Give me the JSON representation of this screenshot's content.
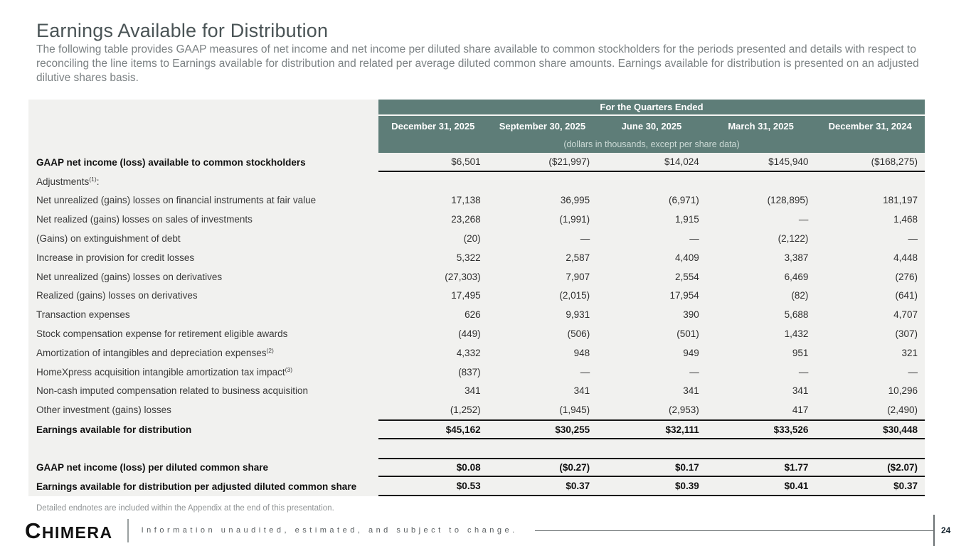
{
  "slide": {
    "title": "Earnings Available for Distribution",
    "subtitle": "The following table provides GAAP measures of net income and net income per diluted share available to common stockholders for the periods presented and details with respect to reconciling the line items to Earnings available for distribution and related per average diluted common share amounts.  Earnings available for distribution is presented on an adjusted dilutive shares basis.",
    "footnote": "Detailed endnotes are included within the Appendix at the end of this presentation.",
    "page_number": "24"
  },
  "footer": {
    "logo_text": "CHIMERA",
    "disclaimer": "Information unaudited, estimated, and subject to change."
  },
  "colors": {
    "header_teal": "#5e7d78",
    "table_background": "#f1f1ef",
    "rule_dark": "#161616"
  },
  "table": {
    "header": {
      "title": "For the Quarters Ended",
      "columns": [
        "December 31, 2025",
        "September 30, 2025",
        "June 30, 2025",
        "March 31, 2025",
        "December 31, 2024"
      ],
      "units_note": "(dollars in thousands, except per share data)"
    },
    "rows": [
      {
        "label": "GAAP net income (loss) available to common stockholders",
        "labelBold": true,
        "lineBottom": true,
        "values": [
          "$6,501",
          "($21,997)",
          "$14,024",
          "$145,940",
          "($168,275)"
        ]
      },
      {
        "label": "Adjustments",
        "sup": "(1)",
        "post": ":",
        "values": []
      },
      {
        "label": "Net unrealized (gains) losses on financial instruments at fair value",
        "values": [
          "17,138",
          "36,995",
          "(6,971)",
          "(128,895)",
          "181,197"
        ]
      },
      {
        "label": "Net realized (gains) losses on sales of investments",
        "values": [
          "23,268",
          "(1,991)",
          "1,915",
          "—",
          "1,468"
        ]
      },
      {
        "label": "(Gains) on extinguishment of debt",
        "values": [
          "(20)",
          "—",
          "—",
          "(2,122)",
          "—"
        ]
      },
      {
        "label": "Increase in provision for credit losses",
        "values": [
          "5,322",
          "2,587",
          "4,409",
          "3,387",
          "4,448"
        ]
      },
      {
        "label": "Net unrealized (gains) losses on derivatives",
        "values": [
          "(27,303)",
          "7,907",
          "2,554",
          "6,469",
          "(276)"
        ]
      },
      {
        "label": "Realized (gains) losses on derivatives",
        "values": [
          "17,495",
          "(2,015)",
          "17,954",
          "(82)",
          "(641)"
        ]
      },
      {
        "label": "Transaction expenses",
        "values": [
          "626",
          "9,931",
          "390",
          "5,688",
          "4,707"
        ]
      },
      {
        "label": "Stock compensation expense for retirement eligible awards",
        "values": [
          "(449)",
          "(506)",
          "(501)",
          "1,432",
          "(307)"
        ]
      },
      {
        "label": "Amortization of intangibles and depreciation expenses",
        "sup": "(2)",
        "values": [
          "4,332",
          "948",
          "949",
          "951",
          "321"
        ]
      },
      {
        "label": "HomeXpress acquisition intangible amortization tax impact",
        "sup": "(3)",
        "values": [
          "(837)",
          "—",
          "—",
          "—",
          "—"
        ]
      },
      {
        "label": "Non-cash imputed compensation related to business acquisition",
        "values": [
          "341",
          "341",
          "341",
          "341",
          "10,296"
        ]
      },
      {
        "label": "Other investment (gains) losses",
        "values": [
          "(1,252)",
          "(1,945)",
          "(2,953)",
          "417",
          "(2,490)"
        ]
      },
      {
        "label": "Earnings available for distribution",
        "labelBold": true,
        "valuesBold": true,
        "lineTop": true,
        "lineBottom": true,
        "tall": true,
        "values": [
          "$45,162",
          "$30,255",
          "$32,111",
          "$33,526",
          "$30,448"
        ]
      },
      {
        "spacer": true,
        "values": []
      },
      {
        "label": "GAAP net income (loss) per diluted common share",
        "labelBold": true,
        "valuesBold": true,
        "lineTop": true,
        "lineBottom": true,
        "values": [
          "$0.08",
          "($0.27)",
          "$0.17",
          "$1.77",
          "($2.07)"
        ]
      },
      {
        "label": "Earnings available for distribution per adjusted diluted common share",
        "labelBold": true,
        "valuesBold": true,
        "lineBottom": true,
        "values": [
          "$0.53",
          "$0.37",
          "$0.39",
          "$0.41",
          "$0.37"
        ]
      }
    ]
  }
}
